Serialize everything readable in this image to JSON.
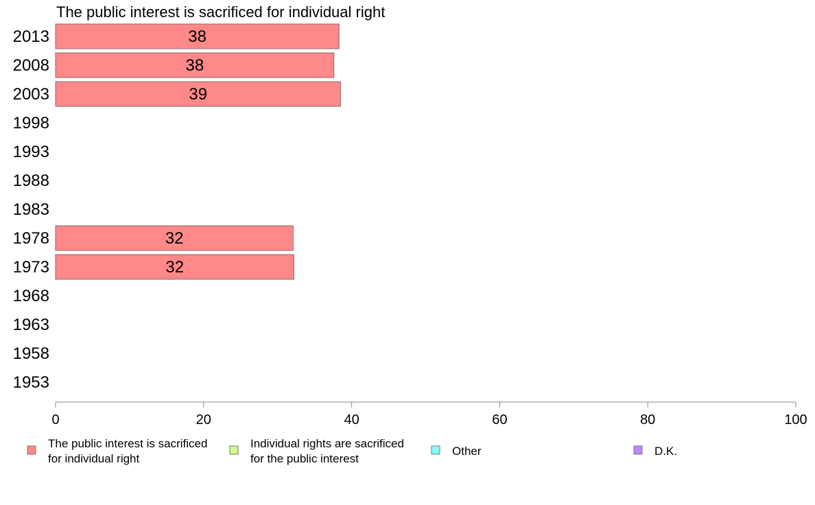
{
  "chart_data": {
    "type": "bar",
    "orientation": "horizontal",
    "title": "The public interest is sacrificed for individual right",
    "categories": [
      "2013",
      "2008",
      "2003",
      "1998",
      "1993",
      "1988",
      "1983",
      "1978",
      "1973",
      "1968",
      "1963",
      "1958",
      "1953"
    ],
    "series": [
      {
        "name": "The public interest is sacrificed for individual right",
        "legend_lines": [
          "The public interest is sacrificed",
          "for individual right"
        ],
        "color": "#ff8888",
        "values": [
          38.3,
          37.6,
          38.5,
          null,
          null,
          null,
          null,
          32.1,
          32.2,
          null,
          null,
          null,
          null
        ],
        "labels": [
          "38",
          "38",
          "39",
          "",
          "",
          "",
          "",
          "32",
          "32",
          "",
          "",
          "",
          ""
        ]
      },
      {
        "name": "Individual rights are sacrificed for the public interest",
        "legend_lines": [
          "Individual rights are sacrificed",
          "for the public interest"
        ],
        "color": "#ccff88",
        "values": [
          null,
          null,
          null,
          null,
          null,
          null,
          null,
          null,
          null,
          null,
          null,
          null,
          null
        ]
      },
      {
        "name": "Other",
        "legend_lines": [
          "Other"
        ],
        "color": "#88ffff",
        "values": [
          null,
          null,
          null,
          null,
          null,
          null,
          null,
          null,
          null,
          null,
          null,
          null,
          null
        ]
      },
      {
        "name": "D.K.",
        "legend_lines": [
          "D.K."
        ],
        "color": "#bb88ff",
        "values": [
          null,
          null,
          null,
          null,
          null,
          null,
          null,
          null,
          null,
          null,
          null,
          null,
          null
        ]
      }
    ],
    "xlim": [
      0,
      100
    ],
    "xticks": [
      0,
      20,
      40,
      60,
      80,
      100
    ],
    "grid": false,
    "legend": "bottom"
  }
}
